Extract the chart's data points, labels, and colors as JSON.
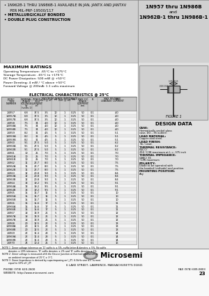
{
  "white": "#ffffff",
  "black": "#000000",
  "dark_gray": "#222222",
  "mid_gray": "#777777",
  "light_gray": "#cccccc",
  "header_bg": "#d0d0d0",
  "table_hdr_bg": "#c8c8c8",
  "right_panel_bg": "#e0e0e0",
  "figure_bg": "#d8d8d8",
  "bullet1": "1N962B-1 THRU 1N986B-1 AVAILABLE IN JAN, JANTX AND JANTXV",
  "bullet1b": "  PER MIL-PRF-19500/117",
  "bullet2": "METALLURGICALLY BONDED",
  "bullet3": "DOUBLE PLUG CONSTRUCTION",
  "title_r1": "1N957 thru 1N986B",
  "title_r2": "and",
  "title_r3": "1N962B-1 thru 1N986B-1",
  "max_ratings_title": "MAXIMUM RATINGS",
  "max_ratings": [
    "Operating Temperature: -65°C to +175°C",
    "Storage Temperature: -65°C to +175°C",
    "DC Power Dissipation: 500 mW @ +50°C",
    "Power Derating: 4 mW / °C above +50°C",
    "Forward Voltage @ 200mA: 1.1 volts maximum"
  ],
  "elec_char_title": "ELECTRICAL CHARACTERISTICS @ 25°C",
  "table_rows": [
    [
      "1N957",
      "6.8",
      "37.5",
      "3.5",
      "10",
      "1",
      "0.25",
      "50",
      "0.1",
      "4.0"
    ],
    [
      "1N957A",
      "6.8",
      "37.5",
      "3.5",
      "10",
      "1",
      "0.25",
      "50",
      "0.1",
      "4.0"
    ],
    [
      "1N957B",
      "6.8",
      "37.5",
      "3.5",
      "10",
      "1",
      "0.25",
      "50",
      "0.1",
      "4.0"
    ],
    [
      "1N958",
      "7.5",
      "34",
      "4.0",
      "10",
      "1",
      "0.25",
      "50",
      "0.1",
      "4.0"
    ],
    [
      "1N958A",
      "7.5",
      "34",
      "4.0",
      "10",
      "1",
      "0.25",
      "50",
      "0.1",
      "4.0"
    ],
    [
      "1N958B",
      "7.5",
      "34",
      "4.0",
      "10",
      "1",
      "0.25",
      "50",
      "0.1",
      "4.0"
    ],
    [
      "1N959",
      "8.2",
      "31",
      "4.5",
      "5",
      "1",
      "0.25",
      "50",
      "0.1",
      "5.1"
    ],
    [
      "1N959A",
      "8.2",
      "31",
      "4.5",
      "5",
      "1",
      "0.25",
      "50",
      "0.1",
      "5.1"
    ],
    [
      "1N959B",
      "8.2",
      "31",
      "4.5",
      "5",
      "1",
      "0.25",
      "50",
      "0.1",
      "5.1"
    ],
    [
      "1N960",
      "9.1",
      "27.5",
      "5.0",
      "5",
      "1",
      "0.25",
      "50",
      "0.1",
      "6.2"
    ],
    [
      "1N960A",
      "9.1",
      "27.5",
      "5.0",
      "5",
      "1",
      "0.25",
      "50",
      "0.1",
      "6.2"
    ],
    [
      "1N960B",
      "9.1",
      "27.5",
      "5.0",
      "5",
      "1",
      "0.25",
      "50",
      "0.1",
      "6.2"
    ],
    [
      "1N961",
      "10",
      "25",
      "7.0",
      "5",
      "1",
      "0.25",
      "50",
      "0.1",
      "7.0"
    ],
    [
      "1N961A",
      "10",
      "25",
      "7.0",
      "5",
      "1",
      "0.25",
      "50",
      "0.1",
      "7.0"
    ],
    [
      "1N961B",
      "10",
      "25",
      "7.0",
      "5",
      "1",
      "0.25",
      "50",
      "0.1",
      "7.0"
    ],
    [
      "1N962",
      "11",
      "22.7",
      "8.0",
      "5",
      "1",
      "0.25",
      "50",
      "0.1",
      "7.5"
    ],
    [
      "1N962A",
      "11",
      "22.7",
      "8.0",
      "5",
      "1",
      "0.25",
      "50",
      "0.1",
      "7.5"
    ],
    [
      "1N962B",
      "11",
      "22.7",
      "8.0",
      "5",
      "1",
      "0.25",
      "50",
      "0.1",
      "7.5"
    ],
    [
      "1N963",
      "12",
      "20.8",
      "9.0",
      "5",
      "1",
      "0.25",
      "50",
      "0.1",
      "8.4"
    ],
    [
      "1N963A",
      "12",
      "20.8",
      "9.0",
      "5",
      "1",
      "0.25",
      "50",
      "0.1",
      "8.4"
    ],
    [
      "1N963B",
      "12",
      "20.8",
      "9.0",
      "5",
      "1",
      "0.25",
      "50",
      "0.1",
      "8.4"
    ],
    [
      "1N964",
      "13",
      "19.2",
      "9.5",
      "5",
      "1",
      "0.25",
      "50",
      "0.1",
      "9.1"
    ],
    [
      "1N964A",
      "13",
      "19.2",
      "9.5",
      "5",
      "1",
      "0.25",
      "50",
      "0.1",
      "9.1"
    ],
    [
      "1N964B",
      "13",
      "19.2",
      "9.5",
      "5",
      "1",
      "0.25",
      "50",
      "0.1",
      "9.1"
    ],
    [
      "1N965",
      "15",
      "16.7",
      "16",
      "5",
      "1",
      "0.25",
      "50",
      "0.1",
      "10"
    ],
    [
      "1N965A",
      "15",
      "16.7",
      "16",
      "5",
      "1",
      "0.25",
      "50",
      "0.1",
      "10"
    ],
    [
      "1N965B",
      "15",
      "16.7",
      "16",
      "5",
      "1",
      "0.25",
      "50",
      "0.1",
      "10"
    ],
    [
      "1N966",
      "16",
      "15.6",
      "17",
      "5",
      "1",
      "0.25",
      "50",
      "0.1",
      "11"
    ],
    [
      "1N966A",
      "16",
      "15.6",
      "17",
      "5",
      "1",
      "0.25",
      "50",
      "0.1",
      "11"
    ],
    [
      "1N966B",
      "16",
      "15.6",
      "17",
      "5",
      "1",
      "0.25",
      "50",
      "0.1",
      "11"
    ],
    [
      "1N967",
      "18",
      "13.9",
      "21",
      "5",
      "1",
      "0.25",
      "50",
      "0.1",
      "12"
    ],
    [
      "1N967A",
      "18",
      "13.9",
      "21",
      "5",
      "1",
      "0.25",
      "50",
      "0.1",
      "12"
    ],
    [
      "1N967B",
      "18",
      "13.9",
      "21",
      "5",
      "1",
      "0.25",
      "50",
      "0.1",
      "12"
    ],
    [
      "1N968",
      "20",
      "12.5",
      "22",
      "5",
      "1",
      "0.25",
      "50",
      "0.1",
      "13"
    ],
    [
      "1N968A",
      "20",
      "12.5",
      "22",
      "5",
      "1",
      "0.25",
      "50",
      "0.1",
      "13"
    ],
    [
      "1N968B",
      "20",
      "12.5",
      "22",
      "5",
      "1",
      "0.25",
      "50",
      "0.1",
      "13"
    ],
    [
      "1N969",
      "22",
      "11.4",
      "23",
      "5",
      "1",
      "0.25",
      "50",
      "0.1",
      "14"
    ],
    [
      "1N969A",
      "22",
      "11.4",
      "23",
      "5",
      "1",
      "0.25",
      "50",
      "0.1",
      "14"
    ],
    [
      "1N969B",
      "22",
      "11.4",
      "23",
      "5",
      "1",
      "0.25",
      "50",
      "0.1",
      "14"
    ],
    [
      "1N970",
      "24",
      "10.4",
      "25",
      "5",
      "1",
      "0.25",
      "50",
      "0.1",
      "16"
    ]
  ],
  "notes": [
    "NOTE 1  Zener voltage tolerance on 'D' suffix is ± 5%, suffix letter A denotes ± 5%, No suffix",
    "         denotes ± 20% tolerance, 'D' suffix denotes ± 2% and 'D' suffix denotes ± 1%.",
    "NOTE 2  Zener voltage is measured with the Device Junction at thermal equilibrium at",
    "         an ambient temperature of 25°C ± 3°C.",
    "NOTE 3  Zener Impedance is derived by superimposing on I_ZT, 6.5kHz sine a.c. current",
    "         equal to 10% of I_ZT."
  ],
  "design_data_title": "DESIGN DATA",
  "design_items": [
    {
      "label": "CASE:",
      "text": "Hermetically sealed glass\ncase, DO – 35 outline."
    },
    {
      "label": "LEAD MATERIAL:",
      "text": "Copper clad steel."
    },
    {
      "label": "LEAD FINISH:",
      "text": "Tin / Lead."
    },
    {
      "label": "THERMAL RESISTANCE:",
      "text": "(θJC,C)\n250 °C/W maximum at L = .375 inch"
    },
    {
      "label": "THERMAL IMPEDANCE:",
      "text": "(ΔθJC) 35\n°C/W maximum"
    },
    {
      "label": "POLARITY:",
      "text": "Diode to be operated with\nthe banded (cathode) end positive."
    },
    {
      "label": "MOUNTING POSITION:",
      "text": "Any"
    }
  ],
  "figure_label": "FIGURE 1",
  "footer_addr": "6 LAKE STREET, LAWRENCE, MASSACHUSETTS 01841",
  "footer_phone": "PHONE (978) 620-2600",
  "footer_fax": "FAX (978) 689-0803",
  "footer_web": "WEBSITE: http://www.microsemi.com",
  "footer_page": "23"
}
